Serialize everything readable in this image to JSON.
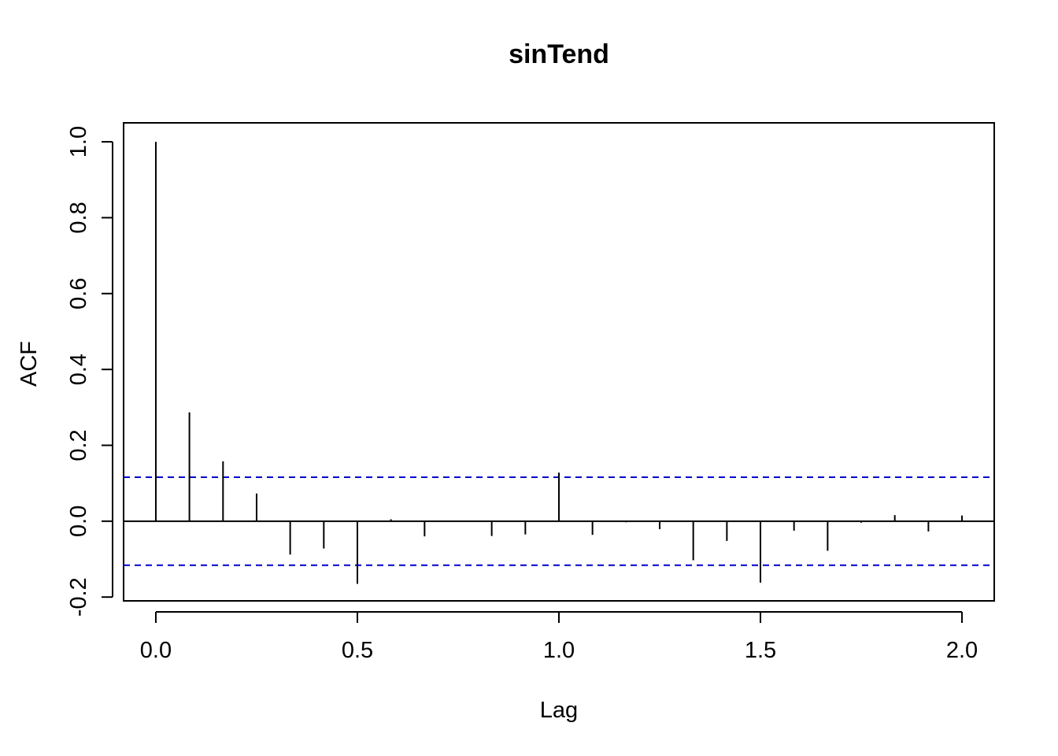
{
  "chart_data": {
    "type": "bar",
    "title": "sinTend",
    "xlabel": "Lag",
    "ylabel": "ACF",
    "xlim": [
      -0.08,
      2.08
    ],
    "ylim": [
      -0.21,
      1.05
    ],
    "x_ticks": [
      0.0,
      0.5,
      1.0,
      1.5,
      2.0
    ],
    "x_tick_labels": [
      "0.0",
      "0.5",
      "1.0",
      "1.5",
      "2.0"
    ],
    "y_ticks": [
      -0.2,
      0.0,
      0.2,
      0.4,
      0.6,
      0.8,
      1.0
    ],
    "y_tick_labels": [
      "-0.2",
      "0.0",
      "0.2",
      "0.4",
      "0.6",
      "0.8",
      "1.0"
    ],
    "lags": [
      0.0,
      0.0833,
      0.1667,
      0.25,
      0.3333,
      0.4167,
      0.5,
      0.5833,
      0.6667,
      0.75,
      0.8333,
      0.9167,
      1.0,
      1.0833,
      1.1667,
      1.25,
      1.3333,
      1.4167,
      1.5,
      1.5833,
      1.6667,
      1.75,
      1.8333,
      1.9167,
      2.0
    ],
    "acf": [
      1.0,
      0.287,
      0.158,
      0.073,
      -0.088,
      -0.072,
      -0.165,
      0.005,
      -0.04,
      0.001,
      -0.039,
      -0.035,
      0.128,
      -0.036,
      -0.003,
      -0.021,
      -0.103,
      -0.052,
      -0.162,
      -0.025,
      -0.078,
      -0.004,
      0.016,
      -0.027,
      0.015
    ],
    "confidence_bound": 0.116,
    "colors": {
      "bars": "#000000",
      "confidence": "#0000cc",
      "zero_line": "#000000"
    },
    "grid": false
  }
}
